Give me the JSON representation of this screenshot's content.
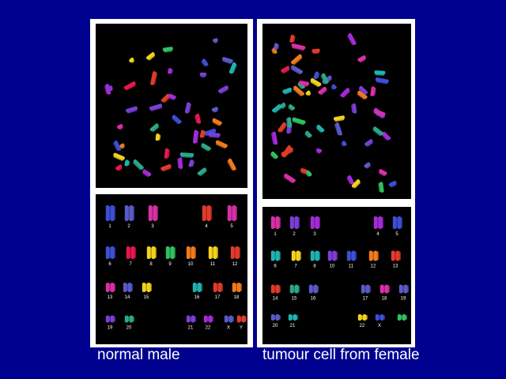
{
  "captions": {
    "left": "normal male",
    "right": "tumour cell from female"
  },
  "karyotype_labels": {
    "normal_male": [
      "1",
      "2",
      "3",
      "4",
      "5",
      "6",
      "7",
      "8",
      "9",
      "10",
      "11",
      "12",
      "13",
      "14",
      "15",
      "16",
      "17",
      "18",
      "19",
      "20",
      "21",
      "22",
      "X",
      "Y"
    ],
    "tumour_female": [
      "1",
      "2",
      "3",
      "4",
      "5",
      "6",
      "7",
      "8",
      "10",
      "11",
      "12",
      "13",
      "14",
      "15",
      "16",
      "17",
      "18",
      "19",
      "20",
      "21",
      "22",
      "X"
    ]
  },
  "colors": {
    "background": "#00008f",
    "frame": "#ffffff",
    "image_background": "#000000"
  }
}
